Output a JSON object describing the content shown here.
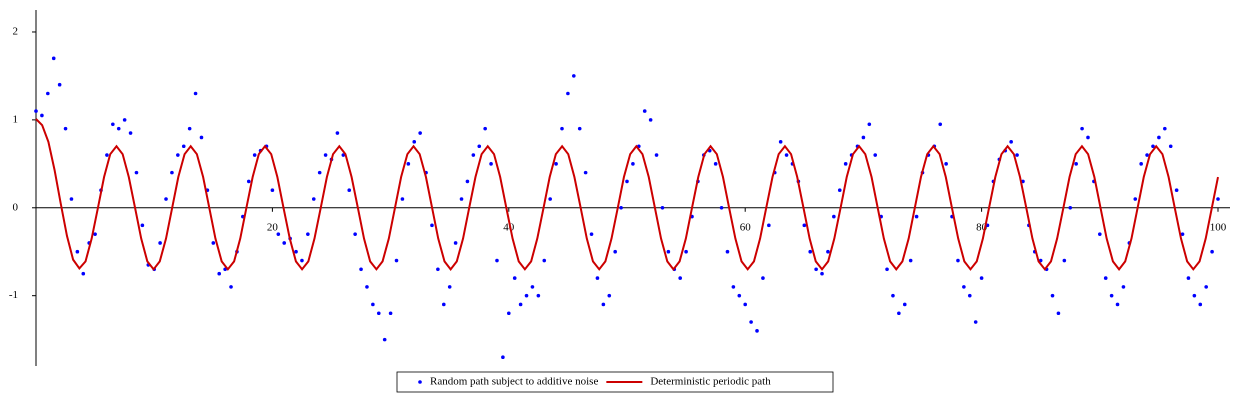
{
  "chart_data": {
    "type": "line",
    "xlim": [
      0,
      100
    ],
    "xticks": [
      20,
      40,
      60,
      80,
      100
    ],
    "ylim": [
      -1.8,
      2.25
    ],
    "yticks": [
      -1,
      0,
      1,
      2
    ],
    "legend": "bottom",
    "series": [
      {
        "name": "Random path subject to additive noise",
        "color": "#0000ff",
        "mode": "points",
        "x": [
          0,
          0.5,
          1,
          1.5,
          2,
          2.5,
          3,
          3.5,
          4,
          4.5,
          5,
          5.5,
          6,
          6.5,
          7,
          7.5,
          8,
          8.5,
          9,
          9.5,
          10,
          10.5,
          11,
          11.5,
          12,
          12.5,
          13,
          13.5,
          14,
          14.5,
          15,
          15.5,
          16,
          16.5,
          17,
          17.5,
          18,
          18.5,
          19,
          19.5,
          20,
          20.5,
          21,
          21.5,
          22,
          22.5,
          23,
          23.5,
          24,
          24.5,
          25,
          25.5,
          26,
          26.5,
          27,
          27.5,
          28,
          28.5,
          29,
          29.5,
          30,
          30.5,
          31,
          31.5,
          32,
          32.5,
          33,
          33.5,
          34,
          34.5,
          35,
          35.5,
          36,
          36.5,
          37,
          37.5,
          38,
          38.5,
          39,
          39.5,
          40,
          40.5,
          41,
          41.5,
          42,
          42.5,
          43,
          43.5,
          44,
          44.5,
          45,
          45.5,
          46,
          46.5,
          47,
          47.5,
          48,
          48.5,
          49,
          49.5,
          50,
          50.5,
          51,
          51.5,
          52,
          52.5,
          53,
          53.5,
          54,
          54.5,
          55,
          55.5,
          56,
          56.5,
          57,
          57.5,
          58,
          58.5,
          59,
          59.5,
          60,
          60.5,
          61,
          61.5,
          62,
          62.5,
          63,
          63.5,
          64,
          64.5,
          65,
          65.5,
          66,
          66.5,
          67,
          67.5,
          68,
          68.5,
          69,
          69.5,
          70,
          70.5,
          71,
          71.5,
          72,
          72.5,
          73,
          73.5,
          74,
          74.5,
          75,
          75.5,
          76,
          76.5,
          77,
          77.5,
          78,
          78.5,
          79,
          79.5,
          80,
          80.5,
          81,
          81.5,
          82,
          82.5,
          83,
          83.5,
          84,
          84.5,
          85,
          85.5,
          86,
          86.5,
          87,
          87.5,
          88,
          88.5,
          89,
          89.5,
          90,
          90.5,
          91,
          91.5,
          92,
          92.5,
          93,
          93.5,
          94,
          94.5,
          95,
          95.5,
          96,
          96.5,
          97,
          97.5,
          98,
          98.5,
          99,
          99.5,
          100
        ],
        "values": [
          1.1,
          1.05,
          1.3,
          1.7,
          1.4,
          0.9,
          0.1,
          -0.5,
          -0.75,
          -0.4,
          -0.3,
          0.2,
          0.6,
          0.95,
          0.9,
          1.0,
          0.85,
          0.4,
          -0.2,
          -0.65,
          -0.7,
          -0.4,
          0.1,
          0.4,
          0.6,
          0.7,
          0.9,
          1.3,
          0.8,
          0.2,
          -0.4,
          -0.75,
          -0.7,
          -0.9,
          -0.5,
          -0.1,
          0.3,
          0.6,
          0.65,
          0.7,
          0.2,
          -0.3,
          -0.4,
          -0.35,
          -0.5,
          -0.6,
          -0.3,
          0.1,
          0.4,
          0.6,
          0.55,
          0.85,
          0.6,
          0.2,
          -0.3,
          -0.7,
          -0.9,
          -1.1,
          -1.2,
          -1.5,
          -1.2,
          -0.6,
          0.1,
          0.5,
          0.75,
          0.85,
          0.4,
          -0.2,
          -0.7,
          -1.1,
          -0.9,
          -0.4,
          0.1,
          0.3,
          0.6,
          0.7,
          0.9,
          0.5,
          -0.6,
          -1.7,
          -1.2,
          -0.8,
          -1.1,
          -1.0,
          -0.9,
          -1.0,
          -0.6,
          0.1,
          0.5,
          0.9,
          1.3,
          1.5,
          0.9,
          0.4,
          -0.3,
          -0.8,
          -1.1,
          -1.0,
          -0.5,
          0.0,
          0.3,
          0.5,
          0.7,
          1.1,
          1.0,
          0.6,
          0.0,
          -0.5,
          -0.7,
          -0.8,
          -0.5,
          -0.1,
          0.3,
          0.6,
          0.65,
          0.5,
          0.0,
          -0.5,
          -0.9,
          -1.0,
          -1.1,
          -1.3,
          -1.4,
          -0.8,
          -0.2,
          0.4,
          0.75,
          0.6,
          0.5,
          0.3,
          -0.2,
          -0.5,
          -0.7,
          -0.75,
          -0.5,
          -0.1,
          0.2,
          0.5,
          0.6,
          0.7,
          0.8,
          0.95,
          0.6,
          -0.1,
          -0.7,
          -1.0,
          -1.2,
          -1.1,
          -0.6,
          -0.1,
          0.4,
          0.6,
          0.7,
          0.95,
          0.5,
          -0.1,
          -0.6,
          -0.9,
          -1.0,
          -1.3,
          -0.8,
          -0.2,
          0.3,
          0.55,
          0.65,
          0.75,
          0.6,
          0.3,
          -0.2,
          -0.5,
          -0.6,
          -0.7,
          -1.0,
          -1.2,
          -0.6,
          0.0,
          0.5,
          0.9,
          0.8,
          0.3,
          -0.3,
          -0.8,
          -1.0,
          -1.1,
          -0.9,
          -0.4,
          0.1,
          0.5,
          0.6,
          0.7,
          0.8,
          0.9,
          0.7,
          0.2,
          -0.3,
          -0.8,
          -1.0,
          -1.1,
          -0.9,
          -0.5,
          0.1
        ]
      },
      {
        "name": "Deterministic periodic path",
        "color": "#cc0000",
        "mode": "line",
        "x": [
          0,
          0.52,
          1.05,
          1.57,
          2.09,
          2.62,
          3.14,
          3.67,
          4.19,
          4.71,
          5.24,
          5.76,
          6.28,
          6.81,
          7.33,
          7.85,
          8.38,
          8.9,
          9.42,
          9.95,
          10.47,
          11.0,
          11.52,
          12.04,
          12.57,
          13.09,
          13.61,
          14.14,
          14.66,
          15.18,
          15.71,
          16.23,
          16.76,
          17.28,
          17.8,
          18.33,
          18.85,
          19.37,
          19.9,
          20.42,
          20.94,
          21.47,
          21.99,
          22.51,
          23.04,
          23.56,
          24.09,
          24.61,
          25.13,
          25.66,
          26.18,
          26.7,
          27.23,
          27.75,
          28.27,
          28.8,
          29.32,
          29.85,
          30.37,
          30.89,
          31.42,
          31.94,
          32.46,
          32.99,
          33.51,
          34.03,
          34.56,
          35.08,
          35.6,
          36.13,
          36.65,
          37.18,
          37.7,
          38.22,
          38.75,
          39.27,
          39.79,
          40.32,
          40.84,
          41.36,
          41.89,
          42.41,
          42.94,
          43.46,
          43.98,
          44.51,
          45.03,
          45.55,
          46.08,
          46.6,
          47.12,
          47.65,
          48.17,
          48.69,
          49.22,
          49.74,
          50.27,
          50.79,
          51.31,
          51.84,
          52.36,
          52.88,
          53.41,
          53.93,
          54.45,
          54.98,
          55.5,
          56.03,
          56.55,
          57.07,
          57.6,
          58.12,
          58.64,
          59.17,
          59.69,
          60.21,
          60.74,
          61.26,
          61.78,
          62.31,
          62.83,
          63.36,
          63.88,
          64.4,
          64.93,
          65.45,
          65.97,
          66.5,
          67.02,
          67.54,
          68.07,
          68.59,
          69.12,
          69.64,
          70.16,
          70.69,
          71.21,
          71.73,
          72.26,
          72.78,
          73.3,
          73.83,
          74.35,
          74.87,
          75.4,
          75.92,
          76.45,
          76.97,
          77.49,
          78.02,
          78.54,
          79.06,
          79.59,
          80.11,
          80.63,
          81.16,
          81.68,
          82.2,
          82.73,
          83.25,
          83.78,
          84.3,
          84.82,
          85.35,
          85.87,
          86.39,
          86.92,
          87.44,
          87.96,
          88.49,
          89.01,
          89.54,
          90.06,
          90.58,
          91.11,
          91.63,
          92.15,
          92.68,
          93.2,
          93.72,
          94.25,
          94.77,
          95.3,
          95.82,
          96.34,
          96.87,
          97.39,
          97.91,
          98.44,
          98.96,
          99.48,
          100
        ],
        "values": [
          1.01,
          0.94,
          0.75,
          0.43,
          0.05,
          -0.32,
          -0.59,
          -0.69,
          -0.61,
          -0.35,
          0,
          0.35,
          0.61,
          0.7,
          0.61,
          0.35,
          0,
          -0.35,
          -0.61,
          -0.7,
          -0.61,
          -0.35,
          0,
          0.35,
          0.61,
          0.7,
          0.61,
          0.35,
          0,
          -0.35,
          -0.61,
          -0.7,
          -0.61,
          -0.35,
          0,
          0.35,
          0.61,
          0.7,
          0.61,
          0.35,
          0,
          -0.35,
          -0.61,
          -0.7,
          -0.61,
          -0.35,
          0,
          0.35,
          0.61,
          0.7,
          0.61,
          0.35,
          0,
          -0.35,
          -0.61,
          -0.7,
          -0.61,
          -0.35,
          0,
          0.35,
          0.61,
          0.7,
          0.61,
          0.35,
          0,
          -0.35,
          -0.61,
          -0.7,
          -0.61,
          -0.35,
          0,
          0.35,
          0.61,
          0.7,
          0.61,
          0.35,
          0,
          -0.35,
          -0.61,
          -0.7,
          -0.61,
          -0.35,
          0,
          0.35,
          0.61,
          0.7,
          0.61,
          0.35,
          0,
          -0.35,
          -0.61,
          -0.7,
          -0.61,
          -0.35,
          0,
          0.35,
          0.61,
          0.7,
          0.61,
          0.35,
          0,
          -0.35,
          -0.61,
          -0.7,
          -0.61,
          -0.35,
          0,
          0.35,
          0.61,
          0.7,
          0.61,
          0.35,
          0,
          -0.35,
          -0.61,
          -0.7,
          -0.61,
          -0.35,
          0,
          0.35,
          0.61,
          0.7,
          0.61,
          0.35,
          0,
          -0.35,
          -0.61,
          -0.7,
          -0.61,
          -0.35,
          0,
          0.35,
          0.61,
          0.7,
          0.61,
          0.35,
          0,
          -0.35,
          -0.61,
          -0.7,
          -0.61,
          -0.35,
          0,
          0.35,
          0.61,
          0.7,
          0.61,
          0.35,
          0,
          -0.35,
          -0.61,
          -0.7,
          -0.61,
          -0.35,
          0,
          0.35,
          0.61,
          0.7,
          0.61,
          0.35,
          0,
          -0.35,
          -0.61,
          -0.7,
          -0.61,
          -0.35,
          0,
          0.35,
          0.61,
          0.7,
          0.61,
          0.35,
          0,
          -0.35,
          -0.61,
          -0.7,
          -0.61,
          -0.35,
          0,
          0.35,
          0.61,
          0.7,
          0.61,
          0.35,
          0,
          -0.35,
          -0.61,
          -0.7,
          -0.61,
          -0.35,
          0,
          0.35
        ]
      }
    ]
  }
}
